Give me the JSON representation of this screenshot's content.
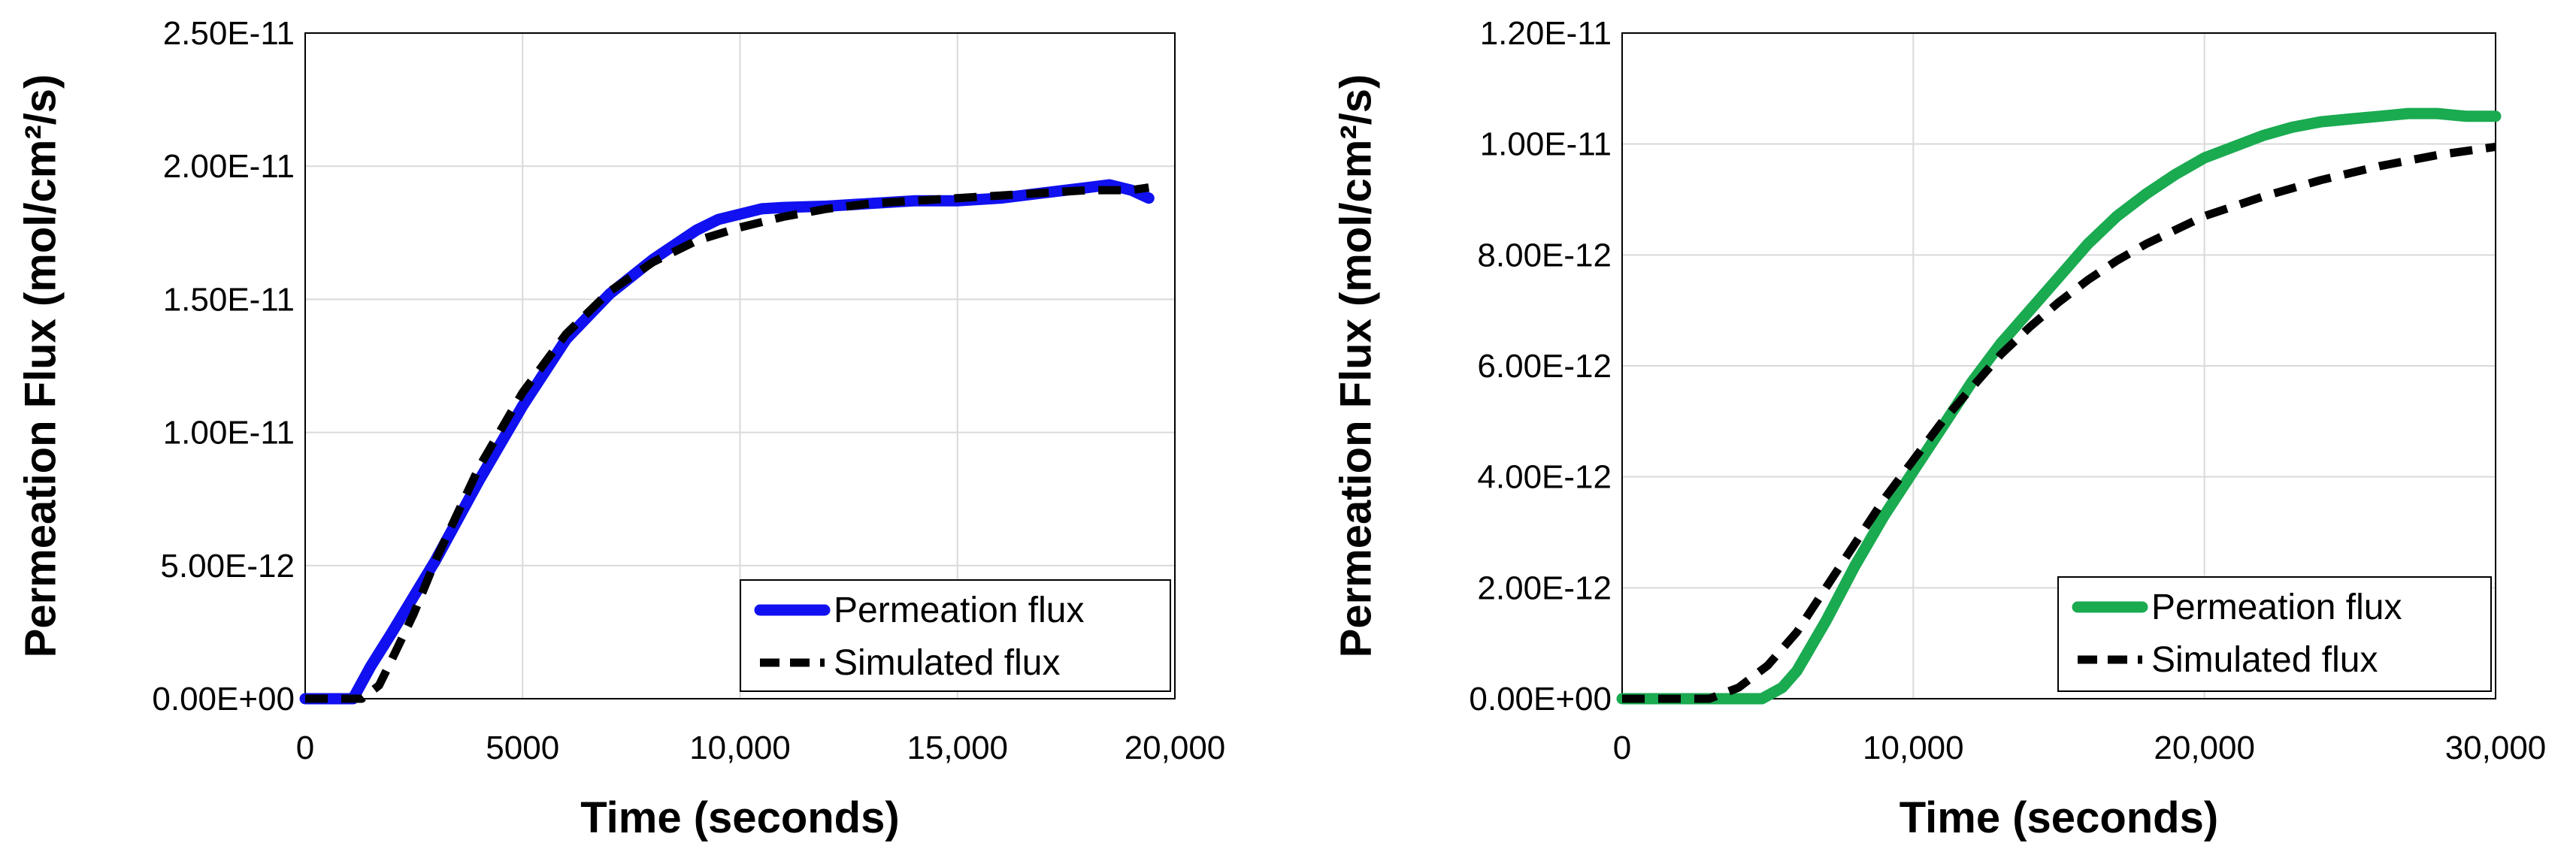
{
  "chart_data": [
    {
      "type": "line",
      "title": "",
      "xlabel": "Time (seconds)",
      "ylabel": "Permeation Flux (mol/cm²/s)",
      "xlim": [
        0,
        20000
      ],
      "ylim": [
        0,
        2.5e-11
      ],
      "xticks": [
        0,
        5000,
        10000,
        15000,
        20000
      ],
      "xtick_labels": [
        "0",
        "5000",
        "10,000",
        "15,000",
        "20,000"
      ],
      "yticks": [
        0,
        5e-12,
        1e-11,
        1.5e-11,
        2e-11,
        2.5e-11
      ],
      "ytick_labels": [
        "0.00E+00",
        "5.00E-12",
        "1.00E-11",
        "1.50E-11",
        "2.00E-11",
        "2.50E-11"
      ],
      "grid": true,
      "legend_position": "bottom-right",
      "series": [
        {
          "name": "Permeation flux",
          "color": "#1010f0",
          "dash": "solid",
          "x": [
            0,
            1100,
            1500,
            2000,
            3000,
            4000,
            5000,
            6000,
            7000,
            8000,
            9000,
            9500,
            10000,
            10500,
            11000,
            12000,
            13000,
            14000,
            15000,
            16000,
            17000,
            18000,
            18500,
            19000,
            19400
          ],
          "y": [
            0,
            0,
            1.2e-12,
            2.5e-12,
            5.2e-12,
            8.2e-12,
            1.1e-11,
            1.35e-11,
            1.52e-11,
            1.65e-11,
            1.76e-11,
            1.8e-11,
            1.82e-11,
            1.84e-11,
            1.845e-11,
            1.85e-11,
            1.86e-11,
            1.87e-11,
            1.87e-11,
            1.88e-11,
            1.9e-11,
            1.92e-11,
            1.93e-11,
            1.91e-11,
            1.88e-11
          ]
        },
        {
          "name": "Simulated flux",
          "color": "#000000",
          "dash": "dashed",
          "x": [
            0,
            1000,
            1300,
            1700,
            2000,
            2500,
            3000,
            4000,
            5000,
            6000,
            7000,
            8000,
            9000,
            10000,
            11000,
            12000,
            13000,
            14000,
            15000,
            16000,
            17000,
            18000,
            19000,
            19400
          ],
          "y": [
            0,
            0,
            0,
            5e-13,
            1.5e-12,
            3.2e-12,
            5.2e-12,
            8.7e-12,
            1.15e-11,
            1.37e-11,
            1.53e-11,
            1.64e-11,
            1.72e-11,
            1.77e-11,
            1.81e-11,
            1.84e-11,
            1.86e-11,
            1.87e-11,
            1.88e-11,
            1.89e-11,
            1.9e-11,
            1.91e-11,
            1.91e-11,
            1.92e-11
          ]
        }
      ]
    },
    {
      "type": "line",
      "title": "",
      "xlabel": "Time (seconds)",
      "ylabel": "Permeation Flux (mol/cm²/s)",
      "xlim": [
        0,
        30000
      ],
      "ylim": [
        0,
        1.2e-11
      ],
      "xticks": [
        0,
        10000,
        20000,
        30000
      ],
      "xtick_labels": [
        "0",
        "10,000",
        "20,000",
        "30,000"
      ],
      "yticks": [
        0,
        2e-12,
        4e-12,
        6e-12,
        8e-12,
        1e-11,
        1.2e-11
      ],
      "ytick_labels": [
        "0.00E+00",
        "2.00E-12",
        "4.00E-12",
        "6.00E-12",
        "8.00E-12",
        "1.00E-11",
        "1.20E-11"
      ],
      "grid": true,
      "legend_position": "bottom-right",
      "series": [
        {
          "name": "Permeation flux",
          "color": "#1aaa50",
          "dash": "solid",
          "x": [
            0,
            4800,
            5500,
            6000,
            7000,
            8000,
            9000,
            10000,
            11000,
            12000,
            13000,
            14000,
            15000,
            16000,
            17000,
            18000,
            19000,
            20000,
            21000,
            22000,
            23000,
            24000,
            25000,
            26000,
            27000,
            28000,
            29000,
            30000
          ],
          "y": [
            0,
            0,
            2e-13,
            5e-13,
            1.4e-12,
            2.4e-12,
            3.3e-12,
            4.1e-12,
            4.9e-12,
            5.7e-12,
            6.4e-12,
            7e-12,
            7.6e-12,
            8.2e-12,
            8.7e-12,
            9.1e-12,
            9.45e-12,
            9.75e-12,
            9.95e-12,
            1.015e-11,
            1.03e-11,
            1.04e-11,
            1.045e-11,
            1.05e-11,
            1.055e-11,
            1.055e-11,
            1.05e-11,
            1.05e-11
          ]
        },
        {
          "name": "Simulated flux",
          "color": "#000000",
          "dash": "dashed",
          "x": [
            0,
            3000,
            4000,
            5000,
            6000,
            7000,
            8000,
            9000,
            10000,
            11000,
            12000,
            13000,
            14000,
            15000,
            16000,
            17000,
            18000,
            19000,
            20000,
            22000,
            24000,
            26000,
            28000,
            30000
          ],
          "y": [
            0,
            0,
            2e-13,
            6e-13,
            1.2e-12,
            2e-12,
            2.8e-12,
            3.6e-12,
            4.3e-12,
            5e-12,
            5.6e-12,
            6.2e-12,
            6.7e-12,
            7.15e-12,
            7.55e-12,
            7.9e-12,
            8.2e-12,
            8.45e-12,
            8.7e-12,
            9.05e-12,
            9.35e-12,
            9.6e-12,
            9.8e-12,
            9.95e-12
          ]
        }
      ]
    }
  ]
}
